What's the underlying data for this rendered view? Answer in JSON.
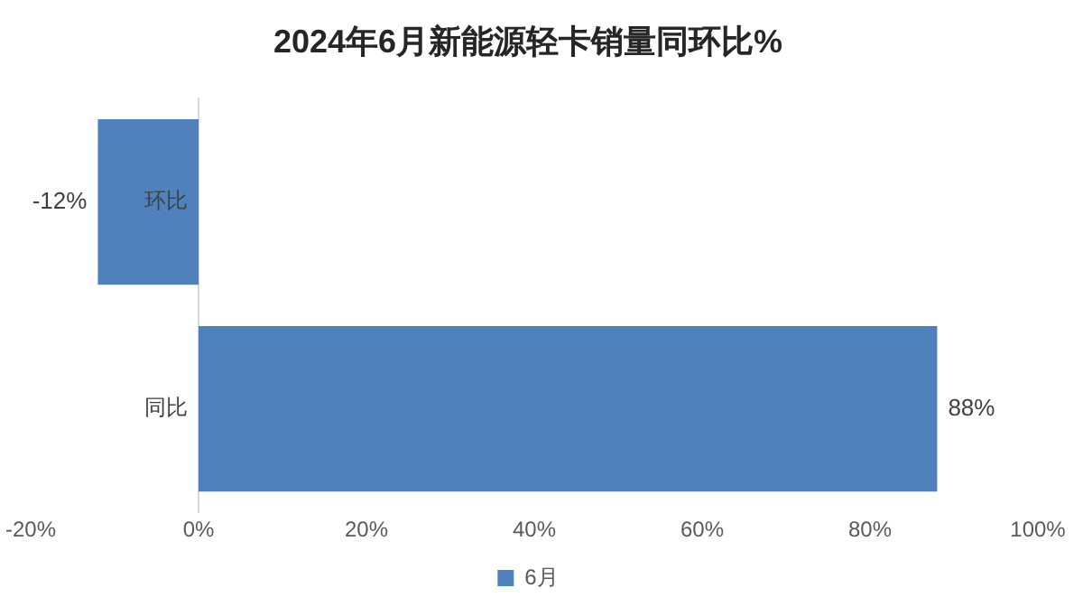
{
  "chart_data": {
    "type": "bar",
    "orientation": "horizontal",
    "title": "2024年6月新能源轻卡销量同环比%",
    "categories": [
      "环比",
      "同比"
    ],
    "series": [
      {
        "name": "6月",
        "color": "#4f81bd",
        "values": [
          -12,
          88
        ],
        "value_labels": [
          "-12%",
          "88%"
        ]
      }
    ],
    "xlim": [
      -20,
      100
    ],
    "xticks": [
      {
        "value": -20,
        "label": "-20%"
      },
      {
        "value": 0,
        "label": "0%"
      },
      {
        "value": 20,
        "label": "20%"
      },
      {
        "value": 40,
        "label": "40%"
      },
      {
        "value": 60,
        "label": "60%"
      },
      {
        "value": 80,
        "label": "80%"
      },
      {
        "value": 100,
        "label": "100%"
      }
    ],
    "grid": false,
    "legend": "bottom"
  }
}
